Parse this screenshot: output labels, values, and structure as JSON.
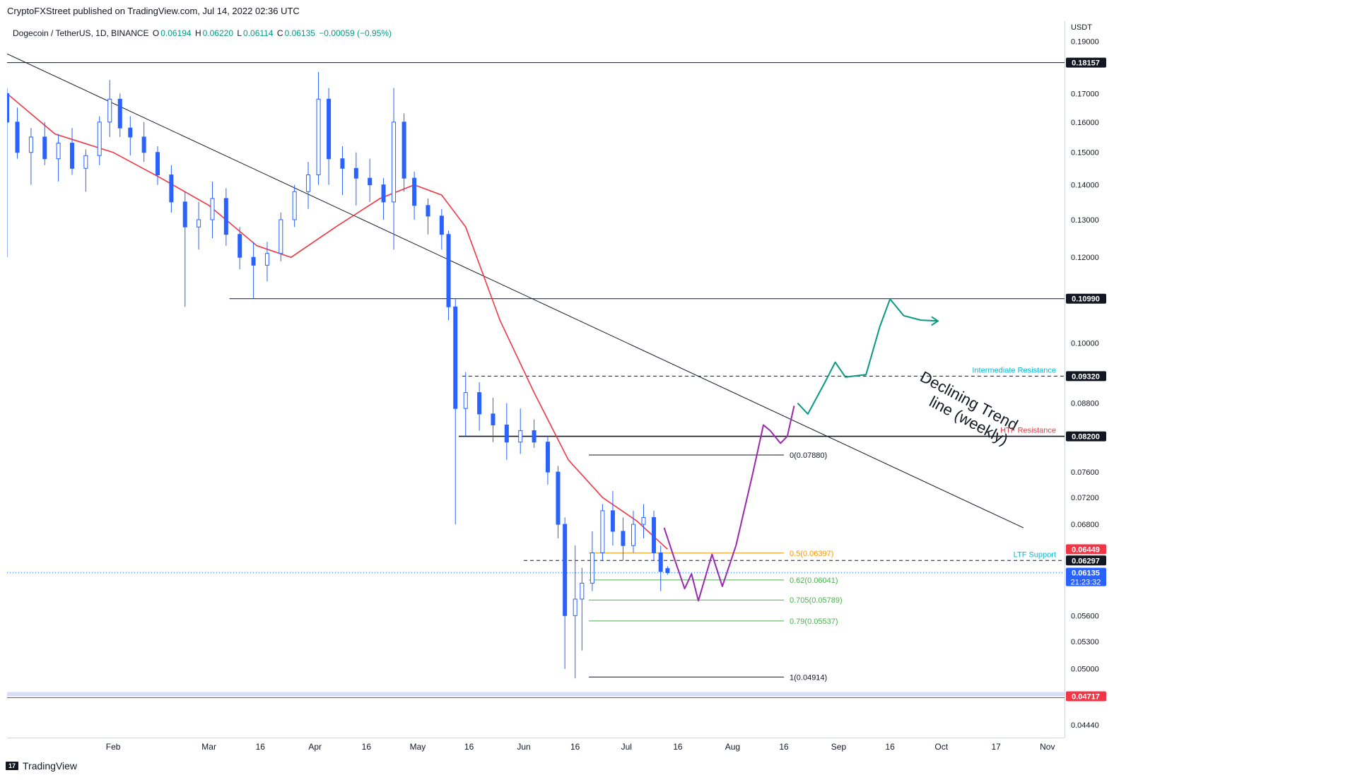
{
  "publisher": "CryptoFXStreet published on TradingView.com, Jul 14, 2022 02:36 UTC",
  "legend": {
    "symbol": "Dogecoin / TetherUS, 1D, BINANCE",
    "o_label": "O",
    "o_value": "0.06194",
    "h_label": "H",
    "h_value": "0.06220",
    "l_label": "L",
    "l_value": "0.06114",
    "c_label": "C",
    "c_value": "0.06135",
    "change": "−0.00059 (−0.95%)"
  },
  "axis_unit": "USDT",
  "brand": "TradingView",
  "colors": {
    "up": "#2962ff",
    "down": "#2962ff",
    "ma": "#f23645",
    "projection": "#9c27b0",
    "target_path": "#089981",
    "intermediate": "#00bcd4",
    "htf": "#f23645",
    "ltf": "#00bcd4",
    "fib_half": "#ff9800",
    "fib_green": "#4caf50"
  },
  "chart_data": {
    "type": "candlestick",
    "title": "Dogecoin / TetherUS, 1D, BINANCE",
    "y_ticks": [
      "0.19000",
      "0.17000",
      "0.16000",
      "0.15000",
      "0.14000",
      "0.13000",
      "0.12000",
      "0.10000",
      "0.08800",
      "0.07600",
      "0.07200",
      "0.06800",
      "0.05600",
      "0.05300",
      "0.05000",
      "0.04440"
    ],
    "x_ticks": [
      "Feb",
      "Mar",
      "16",
      "Apr",
      "16",
      "May",
      "16",
      "Jun",
      "16",
      "Jul",
      "16",
      "Aug",
      "16",
      "Sep",
      "16",
      "Oct",
      "17",
      "Nov"
    ],
    "x_tick_dates": [
      "2022-02-01",
      "2022-03-01",
      "2022-03-16",
      "2022-04-01",
      "2022-04-16",
      "2022-05-01",
      "2022-05-16",
      "2022-06-01",
      "2022-06-16",
      "2022-07-01",
      "2022-07-16",
      "2022-08-01",
      "2022-08-16",
      "2022-09-01",
      "2022-09-16",
      "2022-10-01",
      "2022-10-17",
      "2022-11-01"
    ],
    "price_badges": [
      {
        "value": "0.18157",
        "bg": "#131722"
      },
      {
        "value": "0.10990",
        "bg": "#131722"
      },
      {
        "value": "0.09320",
        "bg": "#131722"
      },
      {
        "value": "0.08200",
        "bg": "#131722"
      },
      {
        "value": "0.06449",
        "bg": "#f23645"
      },
      {
        "value": "0.06297",
        "bg": "#131722"
      },
      {
        "value": "0.06135",
        "bg": "#2962ff"
      },
      {
        "value": "0.04717",
        "bg": "#f23645"
      }
    ],
    "countdown": "21:23:32",
    "horizontal_levels": [
      {
        "value": 0.18157,
        "style": "solid",
        "from": "2022-01-01"
      },
      {
        "value": 0.1099,
        "style": "solid",
        "from": "2022-03-07"
      },
      {
        "value": 0.0932,
        "style": "dashed",
        "from": "2022-05-14",
        "label": "Intermediate Resistance",
        "color": "#00bcd4"
      },
      {
        "value": 0.082,
        "style": "solid",
        "from": "2022-05-13",
        "label": "HTF Resistance",
        "color": "#f23645"
      },
      {
        "value": 0.06297,
        "style": "dashed",
        "from": "2022-06-01",
        "label": "LTF Support",
        "color": "#00bcd4"
      },
      {
        "value": 0.04717,
        "style": "band",
        "from": "2022-01-01"
      }
    ],
    "fibonacci": [
      {
        "ratio": "0",
        "label": "0(0.07880)",
        "value": 0.0788,
        "color": "#131722"
      },
      {
        "ratio": "0.5",
        "label": "0.5(0.06397)",
        "value": 0.06397,
        "color": "#ff9800"
      },
      {
        "ratio": "0.62",
        "label": "0.62(0.06041)",
        "value": 0.06041,
        "color": "#4caf50"
      },
      {
        "ratio": "0.705",
        "label": "0.705(0.05789)",
        "value": 0.05789,
        "color": "#4caf50"
      },
      {
        "ratio": "0.79",
        "label": "0.79(0.05537)",
        "value": 0.05537,
        "color": "#4caf50"
      },
      {
        "ratio": "1",
        "label": "1(0.04914)",
        "value": 0.04914,
        "color": "#131722"
      }
    ],
    "trendline": {
      "label": "Declining Trend\nline (weekly)",
      "points": [
        [
          "2022-01-01",
          0.185
        ],
        [
          "2022-10-25",
          0.0675
        ]
      ]
    },
    "moving_average": [
      [
        "2022-01-01",
        0.17
      ],
      [
        "2022-01-15",
        0.156
      ],
      [
        "2022-02-01",
        0.15
      ],
      [
        "2022-02-15",
        0.142
      ],
      [
        "2022-03-01",
        0.134
      ],
      [
        "2022-03-15",
        0.123
      ],
      [
        "2022-03-25",
        0.12
      ],
      [
        "2022-04-07",
        0.128
      ],
      [
        "2022-04-20",
        0.136
      ],
      [
        "2022-04-30",
        0.14
      ],
      [
        "2022-05-08",
        0.137
      ],
      [
        "2022-05-15",
        0.128
      ],
      [
        "2022-05-25",
        0.105
      ],
      [
        "2022-06-04",
        0.09
      ],
      [
        "2022-06-14",
        0.078
      ],
      [
        "2022-06-24",
        0.072
      ],
      [
        "2022-07-04",
        0.0685
      ],
      [
        "2022-07-13",
        0.0645
      ]
    ],
    "projection_path": [
      [
        "2022-07-12",
        0.0675
      ],
      [
        "2022-07-15",
        0.0632
      ],
      [
        "2022-07-18",
        0.0593
      ],
      [
        "2022-07-20",
        0.0612
      ],
      [
        "2022-07-22",
        0.0578
      ],
      [
        "2022-07-26",
        0.0638
      ],
      [
        "2022-07-29",
        0.0596
      ],
      [
        "2022-08-02",
        0.065
      ],
      [
        "2022-08-07",
        0.076
      ],
      [
        "2022-08-10",
        0.084
      ],
      [
        "2022-08-12",
        0.083
      ],
      [
        "2022-08-15",
        0.0808
      ],
      [
        "2022-08-17",
        0.082
      ],
      [
        "2022-08-19",
        0.0875
      ]
    ],
    "target_path": [
      [
        "2022-08-20",
        0.088
      ],
      [
        "2022-08-23",
        0.086
      ],
      [
        "2022-08-28",
        0.092
      ],
      [
        "2022-08-31",
        0.096
      ],
      [
        "2022-09-03",
        0.093
      ],
      [
        "2022-09-09",
        0.0935
      ],
      [
        "2022-09-13",
        0.1035
      ],
      [
        "2022-09-16",
        0.1098
      ],
      [
        "2022-09-20",
        0.106
      ],
      [
        "2022-09-25",
        0.105
      ],
      [
        "2022-09-30",
        0.1048
      ]
    ],
    "candles": [
      [
        "2022-01-01",
        0.17,
        0.172,
        0.12,
        0.16
      ],
      [
        "2022-01-04",
        0.16,
        0.165,
        0.148,
        0.15
      ],
      [
        "2022-01-08",
        0.15,
        0.158,
        0.14,
        0.155
      ],
      [
        "2022-01-12",
        0.155,
        0.16,
        0.146,
        0.148
      ],
      [
        "2022-01-16",
        0.148,
        0.156,
        0.141,
        0.153
      ],
      [
        "2022-01-20",
        0.153,
        0.158,
        0.143,
        0.145
      ],
      [
        "2022-01-24",
        0.145,
        0.151,
        0.138,
        0.149
      ],
      [
        "2022-01-28",
        0.149,
        0.162,
        0.146,
        0.16
      ],
      [
        "2022-01-31",
        0.16,
        0.175,
        0.155,
        0.168
      ],
      [
        "2022-02-03",
        0.168,
        0.17,
        0.155,
        0.158
      ],
      [
        "2022-02-06",
        0.158,
        0.162,
        0.149,
        0.155
      ],
      [
        "2022-02-10",
        0.155,
        0.16,
        0.147,
        0.15
      ],
      [
        "2022-02-14",
        0.15,
        0.152,
        0.14,
        0.143
      ],
      [
        "2022-02-18",
        0.143,
        0.146,
        0.132,
        0.135
      ],
      [
        "2022-02-22",
        0.135,
        0.138,
        0.108,
        0.128
      ],
      [
        "2022-02-26",
        0.128,
        0.135,
        0.122,
        0.13
      ],
      [
        "2022-03-02",
        0.13,
        0.141,
        0.125,
        0.136
      ],
      [
        "2022-03-06",
        0.136,
        0.139,
        0.123,
        0.126
      ],
      [
        "2022-03-10",
        0.126,
        0.128,
        0.117,
        0.12
      ],
      [
        "2022-03-14",
        0.12,
        0.124,
        0.11,
        0.118
      ],
      [
        "2022-03-18",
        0.118,
        0.124,
        0.114,
        0.121
      ],
      [
        "2022-03-22",
        0.121,
        0.132,
        0.119,
        0.13
      ],
      [
        "2022-03-26",
        0.13,
        0.14,
        0.128,
        0.138
      ],
      [
        "2022-03-30",
        0.138,
        0.147,
        0.133,
        0.143
      ],
      [
        "2022-04-02",
        0.143,
        0.178,
        0.14,
        0.168
      ],
      [
        "2022-04-05",
        0.168,
        0.172,
        0.14,
        0.148
      ],
      [
        "2022-04-09",
        0.148,
        0.152,
        0.137,
        0.145
      ],
      [
        "2022-04-13",
        0.145,
        0.15,
        0.134,
        0.142
      ],
      [
        "2022-04-17",
        0.142,
        0.148,
        0.135,
        0.14
      ],
      [
        "2022-04-21",
        0.14,
        0.142,
        0.13,
        0.135
      ],
      [
        "2022-04-24",
        0.135,
        0.172,
        0.122,
        0.16
      ],
      [
        "2022-04-27",
        0.16,
        0.163,
        0.138,
        0.142
      ],
      [
        "2022-04-30",
        0.142,
        0.144,
        0.13,
        0.134
      ],
      [
        "2022-05-04",
        0.134,
        0.136,
        0.126,
        0.131
      ],
      [
        "2022-05-08",
        0.131,
        0.133,
        0.122,
        0.126
      ],
      [
        "2022-05-10",
        0.126,
        0.127,
        0.105,
        0.108
      ],
      [
        "2022-05-12",
        0.108,
        0.11,
        0.068,
        0.087
      ],
      [
        "2022-05-15",
        0.087,
        0.094,
        0.082,
        0.09
      ],
      [
        "2022-05-19",
        0.09,
        0.092,
        0.083,
        0.086
      ],
      [
        "2022-05-23",
        0.086,
        0.089,
        0.081,
        0.084
      ],
      [
        "2022-05-27",
        0.084,
        0.088,
        0.078,
        0.081
      ],
      [
        "2022-05-31",
        0.081,
        0.087,
        0.079,
        0.083
      ],
      [
        "2022-06-04",
        0.083,
        0.085,
        0.08,
        0.081
      ],
      [
        "2022-06-08",
        0.081,
        0.082,
        0.074,
        0.076
      ],
      [
        "2022-06-11",
        0.076,
        0.077,
        0.066,
        0.068
      ],
      [
        "2022-06-13",
        0.068,
        0.069,
        0.05,
        0.056
      ],
      [
        "2022-06-16",
        0.056,
        0.065,
        0.049,
        0.058
      ],
      [
        "2022-06-18",
        0.058,
        0.062,
        0.052,
        0.06
      ],
      [
        "2022-06-21",
        0.06,
        0.067,
        0.059,
        0.064
      ],
      [
        "2022-06-24",
        0.064,
        0.071,
        0.063,
        0.07
      ],
      [
        "2022-06-27",
        0.07,
        0.073,
        0.065,
        0.067
      ],
      [
        "2022-06-30",
        0.067,
        0.069,
        0.063,
        0.065
      ],
      [
        "2022-07-03",
        0.065,
        0.07,
        0.064,
        0.068
      ],
      [
        "2022-07-06",
        0.068,
        0.071,
        0.066,
        0.069
      ],
      [
        "2022-07-09",
        0.069,
        0.07,
        0.063,
        0.064
      ],
      [
        "2022-07-11",
        0.064,
        0.065,
        0.059,
        0.0615
      ],
      [
        "2022-07-13",
        0.0619,
        0.0622,
        0.0611,
        0.06135
      ]
    ],
    "y_range": [
      0.0432,
      0.1983
    ],
    "x_range": [
      "2022-01-01",
      "2022-11-06"
    ]
  }
}
